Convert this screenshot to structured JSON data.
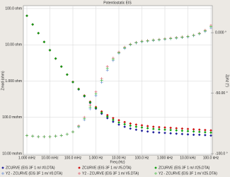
{
  "chart_data": {
    "type": "scatter",
    "title": "Potentiostatic EIS",
    "xlabel": "Freq (Hz)",
    "ylabel": "Zmod (ohm)",
    "y2label": "Zphz (°)",
    "xscale": "log",
    "yscale": "log",
    "grid": true,
    "x": [
      0.001,
      0.00178,
      0.00316,
      0.00562,
      0.01,
      0.0178,
      0.0316,
      0.0562,
      0.1,
      0.178,
      0.316,
      0.562,
      1,
      1.78,
      3.16,
      5.62,
      10,
      17.8,
      31.6,
      56.2,
      100,
      178,
      316,
      562,
      1000,
      1780,
      3160,
      5620,
      10000,
      17800,
      31600,
      56200,
      100000
    ],
    "xlim": [
      0.001,
      100000
    ],
    "xticks": [
      {
        "value": 0.001,
        "label": "1.000 mHz"
      },
      {
        "value": 0.01,
        "label": "10.00 mHz"
      },
      {
        "value": 0.1,
        "label": "100.0 mHz"
      },
      {
        "value": 1,
        "label": "1.000 Hz"
      },
      {
        "value": 10,
        "label": "10.00 Hz"
      },
      {
        "value": 100,
        "label": "100.0 Hz"
      },
      {
        "value": 1000,
        "label": "1.000 kHz"
      },
      {
        "value": 10000,
        "label": "10.00 kHz"
      },
      {
        "value": 100000,
        "label": "100.0 kHz"
      }
    ],
    "ylim": [
      0.01,
      100
    ],
    "yticks": [
      {
        "value": 0.01,
        "label": "10.00 mohm"
      },
      {
        "value": 0.1,
        "label": "100.0 mohm"
      },
      {
        "value": 1,
        "label": "1.000 ohm"
      },
      {
        "value": 10,
        "label": "10.00 ohm"
      },
      {
        "value": 100,
        "label": "100.0 ohm"
      }
    ],
    "y2lim": [
      -100,
      20
    ],
    "y2ticks": [
      {
        "value": -100,
        "label": "-100.0 °"
      },
      {
        "value": -50,
        "label": "-50.00 °"
      },
      {
        "value": 0,
        "label": "0.000 °"
      }
    ],
    "series": [
      {
        "name": "ZCURVE (EIS 3F 1 m/ #0.DTA)",
        "color": "#1f1f9a",
        "values": [
          63.1,
          36.3,
          20.9,
          12.0,
          7.08,
          4.17,
          2.51,
          1.51,
          0.933,
          0.589,
          0.38,
          0.251,
          0.174,
          0.126,
          0.0955,
          0.0759,
          0.0631,
          0.055,
          0.049,
          0.0457,
          0.0427,
          0.0407,
          0.0389,
          0.038,
          0.0372,
          0.0363,
          0.0355,
          0.0347,
          0.0339,
          0.0331,
          0.0331,
          0.0324,
          0.0316
        ]
      },
      {
        "name": "ZCURVE (EIS 3F 1 m/ #5.DTA)",
        "color": "#d01010",
        "values": [
          63.1,
          36.3,
          20.9,
          12.0,
          7.08,
          4.17,
          2.51,
          1.51,
          0.95,
          0.61,
          0.4,
          0.27,
          0.192,
          0.145,
          0.115,
          0.0955,
          0.0832,
          0.0741,
          0.0676,
          0.0631,
          0.0603,
          0.0575,
          0.055,
          0.0537,
          0.0525,
          0.0513,
          0.0501,
          0.049,
          0.0479,
          0.0468,
          0.0457,
          0.0447,
          0.0437
        ]
      },
      {
        "name": "ZCURVE (EIS 3F 1 m/ #25.DTA)",
        "color": "#10a010",
        "values": [
          63.1,
          36.3,
          20.9,
          12.0,
          7.08,
          4.17,
          2.51,
          1.51,
          0.94,
          0.6,
          0.39,
          0.26,
          0.182,
          0.135,
          0.105,
          0.0851,
          0.0724,
          0.0646,
          0.0589,
          0.055,
          0.0525,
          0.0501,
          0.0479,
          0.0468,
          0.0457,
          0.0447,
          0.0437,
          0.0427,
          0.0417,
          0.0407,
          0.0398,
          0.0389,
          0.038
        ]
      },
      {
        "name": "Y2 - ZCURVE (EIS 3F 1 m/ #0.DTA)",
        "color": "#6b8fd6",
        "axis": "y2",
        "values": [
          -85,
          -85.5,
          -86,
          -86,
          -86,
          -85.5,
          -85,
          -84,
          -82,
          -78,
          -72,
          -63,
          -52,
          -41,
          -31,
          -23,
          -17,
          -13,
          -10,
          -8.5,
          -7.5,
          -7,
          -6.5,
          -6,
          -5.5,
          -5,
          -4.5,
          -4,
          -3.5,
          -2.5,
          -1,
          1,
          4
        ]
      },
      {
        "name": "Y2 - ZCURVE (EIS 3F 1 m/ #5.DTA)",
        "color": "#e06070",
        "axis": "y2",
        "values": [
          -85,
          -85.5,
          -86,
          -86,
          -86,
          -85.5,
          -85,
          -84,
          -82,
          -77,
          -70,
          -60,
          -49,
          -38,
          -28,
          -21,
          -16,
          -12,
          -9.5,
          -8,
          -7,
          -6.5,
          -6,
          -5.5,
          -5,
          -4.5,
          -4,
          -3.5,
          -3,
          -2,
          -0.5,
          2,
          6
        ]
      },
      {
        "name": "Y2 - ZCURVE (EIS 3F 1 m/ #25.DTA)",
        "color": "#50c050",
        "axis": "y2",
        "values": [
          -85,
          -85.5,
          -86,
          -86,
          -86,
          -85.5,
          -85,
          -84,
          -82,
          -77.5,
          -71,
          -61.5,
          -50.5,
          -39.5,
          -29.5,
          -22,
          -16.5,
          -12.5,
          -9.8,
          -8.2,
          -7.2,
          -6.8,
          -6.2,
          -5.8,
          -5.2,
          -4.8,
          -4.2,
          -3.8,
          -3.2,
          -2.2,
          -0.8,
          1.5,
          5
        ]
      }
    ]
  }
}
